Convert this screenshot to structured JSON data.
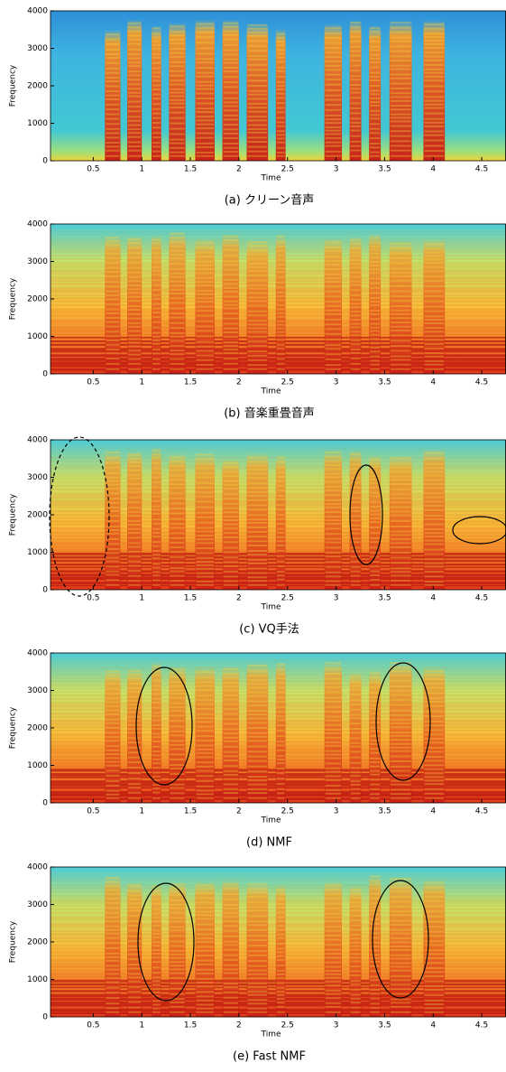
{
  "chart_data": [
    {
      "type": "spectrogram",
      "caption": "(a) クリーン音声",
      "xlabel": "Time",
      "ylabel": "Frequency",
      "xlim": [
        0.06,
        4.75
      ],
      "ylim": [
        0,
        4000
      ],
      "xticks": [
        0.5,
        1,
        1.5,
        2,
        2.5,
        3,
        3.5,
        4,
        4.5
      ],
      "yticks": [
        0,
        1000,
        2000,
        3000,
        4000
      ]
    },
    {
      "type": "spectrogram",
      "caption": "(b) 音楽重畳音声",
      "xlabel": "Time",
      "ylabel": "Frequency",
      "xlim": [
        0.06,
        4.75
      ],
      "ylim": [
        0,
        4000
      ],
      "xticks": [
        0.5,
        1,
        1.5,
        2,
        2.5,
        3,
        3.5,
        4,
        4.5
      ],
      "yticks": [
        0,
        1000,
        2000,
        3000,
        4000
      ]
    },
    {
      "type": "spectrogram",
      "caption": "(c) VQ手法",
      "xlabel": "Time",
      "ylabel": "Frequency",
      "xlim": [
        0.06,
        4.75
      ],
      "ylim": [
        0,
        4000
      ],
      "xticks": [
        0.5,
        1,
        1.5,
        2,
        2.5,
        3,
        3.5,
        4,
        4.5
      ],
      "yticks": [
        0,
        1000,
        2000,
        3000,
        4000
      ]
    },
    {
      "type": "spectrogram",
      "caption": "(d) NMF",
      "xlabel": "Time",
      "ylabel": "Frequency",
      "xlim": [
        0.06,
        4.75
      ],
      "ylim": [
        0,
        4000
      ],
      "xticks": [
        0.5,
        1,
        1.5,
        2,
        2.5,
        3,
        3.5,
        4,
        4.5
      ],
      "yticks": [
        0,
        1000,
        2000,
        3000,
        4000
      ]
    },
    {
      "type": "spectrogram",
      "caption": "(e) Fast NMF",
      "xlabel": "Time",
      "ylabel": "Frequency",
      "xlim": [
        0.06,
        4.75
      ],
      "ylim": [
        0,
        4000
      ],
      "xticks": [
        0.5,
        1,
        1.5,
        2,
        2.5,
        3,
        3.5,
        4,
        4.5
      ],
      "yticks": [
        0,
        1000,
        2000,
        3000,
        4000
      ]
    }
  ]
}
